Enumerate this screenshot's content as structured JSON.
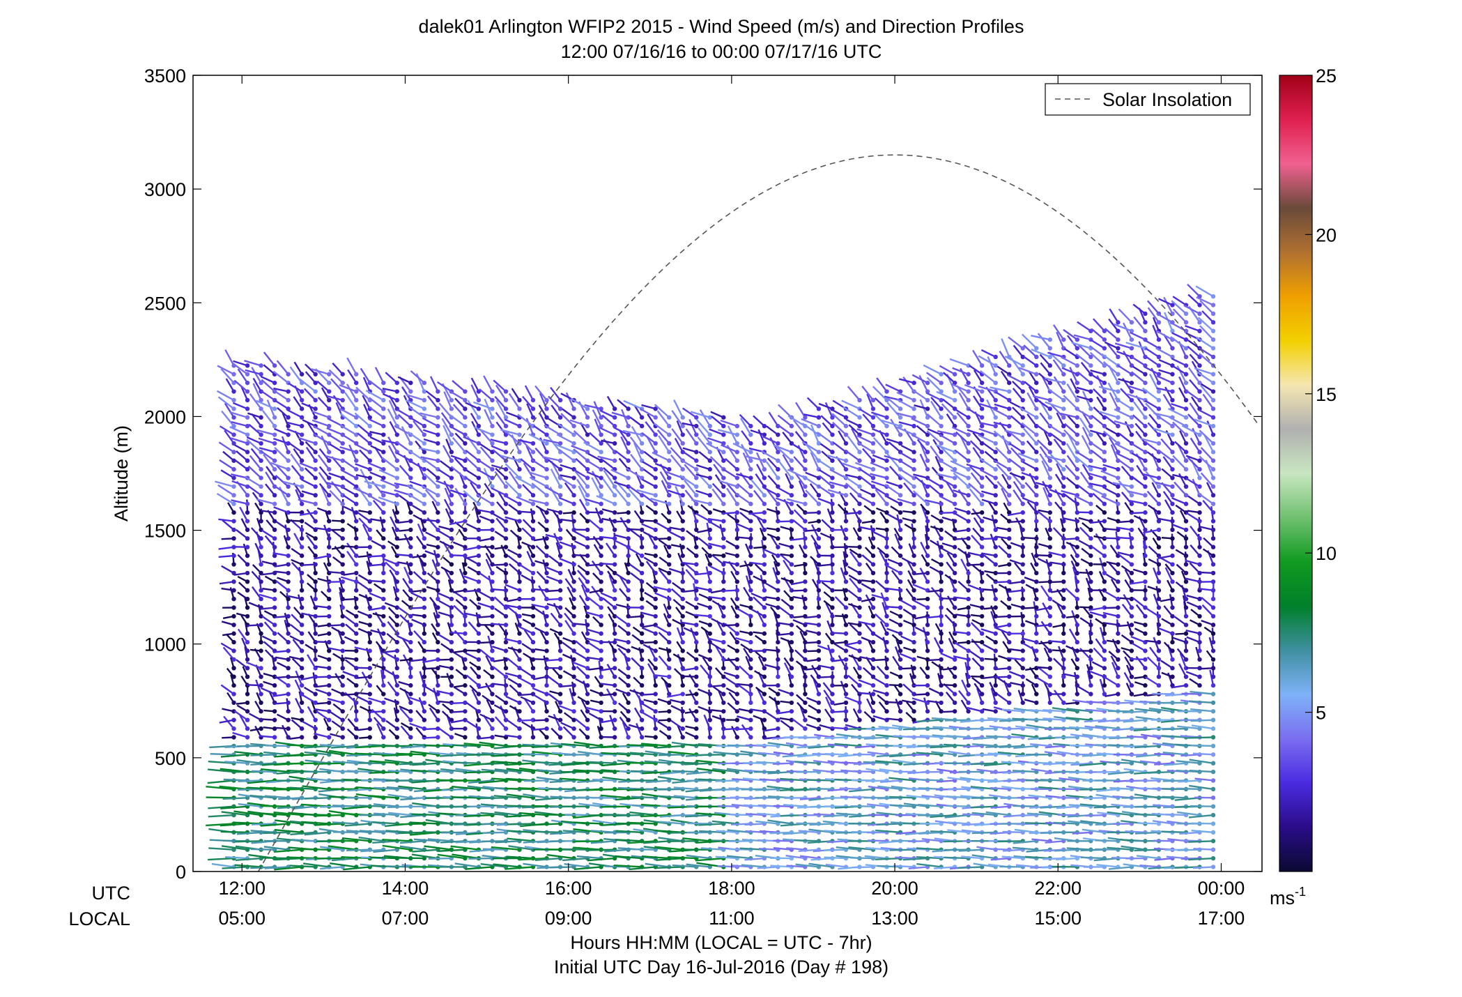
{
  "chart_data": {
    "type": "wind-barb-profile",
    "title": "dalek01 Arlington WFIP2 2015 - Wind Speed (m/s) and Direction Profiles",
    "subtitle": "12:00 07/16/16 to 00:00 07/17/16  UTC",
    "ylabel": "Altitude (m)",
    "ylim": [
      0,
      3500
    ],
    "yticks": [
      "0",
      "500",
      "1000",
      "1500",
      "2000",
      "2500",
      "3000",
      "3500"
    ],
    "xlim_utc_hours": [
      11.4,
      24.5
    ],
    "x_row_labels": [
      "UTC",
      "LOCAL"
    ],
    "xticks_utc": [
      "12:00",
      "14:00",
      "16:00",
      "18:00",
      "20:00",
      "22:00",
      "00:00"
    ],
    "xticks_local": [
      "05:00",
      "07:00",
      "09:00",
      "11:00",
      "13:00",
      "15:00",
      "17:00"
    ],
    "xlabel": "Hours HH:MM  (LOCAL = UTC - 7hr)",
    "xlabel2": "Initial UTC Day 16-Jul-2016 (Day # 198)",
    "legend": {
      "entry": "Solar Insolation",
      "position": "top-right"
    },
    "colorbar": {
      "range": [
        0,
        25
      ],
      "ticks": [
        "5",
        "10",
        "15",
        "20",
        "25"
      ],
      "unit_label": "ms",
      "unit_exponent": "-1",
      "colors": [
        "#0a0a32",
        "#2a0c88",
        "#4a2be0",
        "#7a6ef0",
        "#7fb2f8",
        "#3f8fa0",
        "#00802a",
        "#109a20",
        "#70c070",
        "#c8e6c0",
        "#b0b0b0",
        "#f5e6b0",
        "#f2d000",
        "#f0a000",
        "#b07030",
        "#6a4a3a",
        "#f06090",
        "#e02050",
        "#a00018"
      ]
    },
    "solar_insolation_curve": {
      "style": "dashed",
      "color": "#555555",
      "peak_altitude_m": 3150,
      "peak_utc_hour": 20.0
    },
    "wind_profile_summary": {
      "time_step_hours": 0.1667,
      "start_utc_hour": 11.9,
      "end_utc_hour": 24.0,
      "layers": [
        {
          "altitude_range_m": [
            0,
            550
          ],
          "speed_range_ms": [
            5,
            9
          ],
          "note": "strong green layer near surface, lighter blue after 18:00"
        },
        {
          "altitude_range_m": [
            550,
            1600
          ],
          "speed_range_ms": [
            0.5,
            3
          ],
          "note": "weak dark purple/navy winds"
        },
        {
          "altitude_range_m": [
            1600,
            2400
          ],
          "speed_range_ms": [
            2,
            5
          ],
          "note": "purple to light blue, top rises late in day"
        }
      ]
    }
  }
}
